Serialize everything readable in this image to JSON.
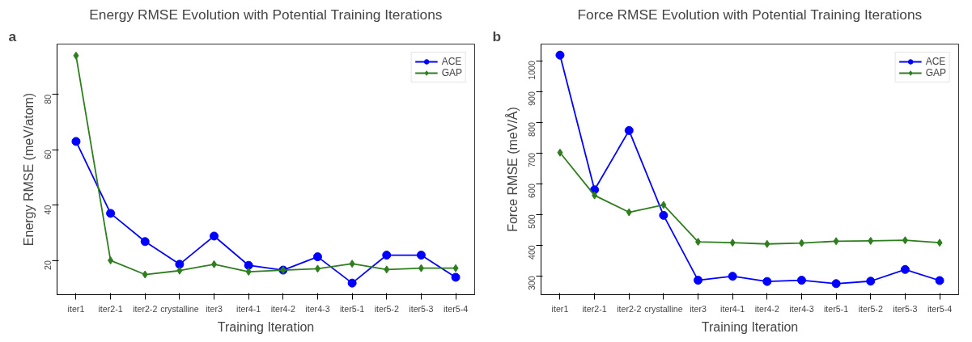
{
  "chart_data": [
    {
      "type": "line",
      "title": "Energy RMSE Evolution with Potential Training Iterations",
      "xlabel": "Training Iteration",
      "ylabel": "Energy RMSE (meV/atom)",
      "annotations": [
        "a"
      ],
      "categories": [
        "iter1",
        "iter2-1",
        "iter2-2",
        "crystalline",
        "iter3",
        "iter4-1",
        "iter4-2",
        "iter4-3",
        "iter5-1",
        "iter5-2",
        "iter5-3",
        "iter5-4"
      ],
      "series": [
        {
          "name": "ACE",
          "color": "#0000ff",
          "marker": "circle",
          "values": [
            63,
            37,
            26.8,
            18.6,
            28.8,
            18.2,
            16.5,
            21.3,
            11.8,
            21.9,
            21.9,
            13.9
          ]
        },
        {
          "name": "GAP",
          "color": "#2e7d1e",
          "marker": "diamond",
          "values": [
            94,
            20,
            14.9,
            16.3,
            18.6,
            15.9,
            16.5,
            17.0,
            18.8,
            16.7,
            17.2,
            17.2
          ]
        }
      ],
      "ylim": [
        7.6,
        98.2
      ],
      "yticks": [
        20,
        40,
        60,
        80
      ],
      "grid": false,
      "legend": "top right",
      "line_style": "solid"
    },
    {
      "type": "line",
      "title": "Force RMSE Evolution with Potential Training Iterations",
      "xlabel": "Training Iteration",
      "ylabel": "Force RMSE (meV/Å)",
      "annotations": [
        "b"
      ],
      "categories": [
        "iter1",
        "iter2-1",
        "iter2-2",
        "crystalline",
        "iter3",
        "iter4-1",
        "iter4-2",
        "iter4-3",
        "iter5-1",
        "iter5-2",
        "iter5-3",
        "iter5-4"
      ],
      "series": [
        {
          "name": "ACE",
          "color": "#0000ff",
          "marker": "circle",
          "values": [
            1018,
            580,
            773,
            497,
            286,
            299,
            282,
            286,
            275,
            283,
            321,
            285
          ]
        },
        {
          "name": "GAP",
          "color": "#2e7d1e",
          "marker": "diamond",
          "values": [
            701,
            562,
            507,
            531,
            411,
            408,
            404,
            407,
            413,
            414,
            416,
            408
          ]
        }
      ],
      "ylim": [
        239,
        1054
      ],
      "yticks": [
        300,
        400,
        500,
        600,
        700,
        800,
        900,
        1000
      ],
      "grid": false,
      "legend": "top right",
      "line_style": "solid"
    }
  ]
}
